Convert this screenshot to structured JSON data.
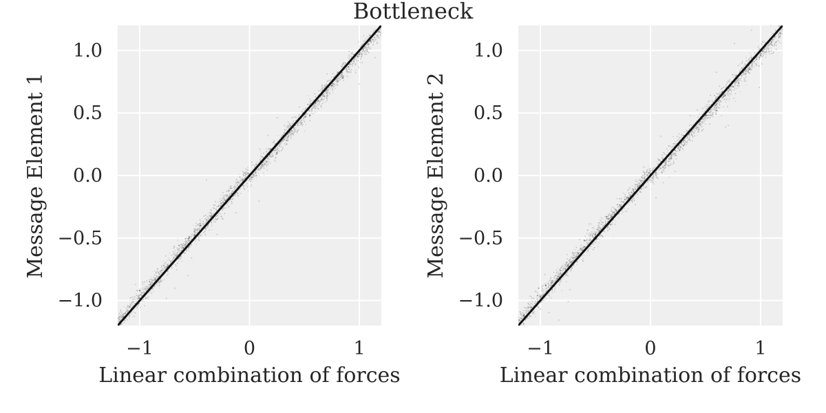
{
  "figure": {
    "suptitle": "Bottleneck"
  },
  "chart_data": [
    {
      "type": "scatter",
      "title": "",
      "xlabel": "Linear combination of forces",
      "ylabel": "Message Element 1",
      "xlim": [
        -1.2,
        1.2
      ],
      "ylim": [
        -1.2,
        1.2
      ],
      "xticks": [
        -1,
        0,
        1
      ],
      "xtick_labels": [
        "−1",
        "0",
        "1"
      ],
      "yticks": [
        -1.0,
        -0.5,
        0.0,
        0.5,
        1.0
      ],
      "ytick_labels": [
        "−1.0",
        "−0.5",
        "0.0",
        "0.5",
        "1.0"
      ],
      "grid": true,
      "style": "seaborn darkgrid, gray background",
      "series": [
        {
          "kind": "points",
          "color": "#555555",
          "relation": "y ≈ x with small scatter, denser near the line",
          "x": [
            -1.15,
            -1.0,
            -0.9,
            -0.75,
            -0.6,
            -0.5,
            -0.35,
            -0.2,
            -0.1,
            0.0,
            0.1,
            0.2,
            0.35,
            0.5,
            0.6,
            0.75,
            0.9,
            1.0,
            1.1,
            -1.0,
            -0.55,
            0.25,
            0.85,
            -0.45,
            0.55
          ],
          "y": [
            -1.13,
            -0.98,
            -0.87,
            -0.73,
            -0.58,
            -0.48,
            -0.33,
            -0.19,
            -0.09,
            0.01,
            0.11,
            0.21,
            0.34,
            0.49,
            0.58,
            0.72,
            0.87,
            0.97,
            1.08,
            -0.92,
            -0.5,
            0.18,
            0.78,
            -0.4,
            0.48
          ]
        },
        {
          "kind": "line",
          "color": "#111111",
          "x": [
            -1.2,
            1.2
          ],
          "y": [
            -1.2,
            1.2
          ]
        }
      ]
    },
    {
      "type": "scatter",
      "title": "",
      "xlabel": "Linear combination of forces",
      "ylabel": "Message Element 2",
      "xlim": [
        -1.2,
        1.2
      ],
      "ylim": [
        -1.2,
        1.2
      ],
      "xticks": [
        -1,
        0,
        1
      ],
      "xtick_labels": [
        "−1",
        "0",
        "1"
      ],
      "yticks": [
        -1.0,
        -0.5,
        0.0,
        0.5,
        1.0
      ],
      "ytick_labels": [
        "−1.0",
        "−0.5",
        "0.0",
        "0.5",
        "1.0"
      ],
      "grid": true,
      "style": "seaborn darkgrid, gray background",
      "series": [
        {
          "kind": "points",
          "color": "#555555",
          "relation": "y ≈ x with small scatter, denser near the line",
          "x": [
            -1.15,
            -1.0,
            -0.9,
            -0.75,
            -0.6,
            -0.5,
            -0.35,
            -0.2,
            -0.1,
            0.0,
            0.1,
            0.2,
            0.35,
            0.5,
            0.6,
            0.75,
            0.9,
            1.0,
            1.1,
            -0.95,
            -0.6,
            0.3,
            0.8,
            -0.4,
            0.6
          ],
          "y": [
            -1.12,
            -0.97,
            -0.86,
            -0.72,
            -0.57,
            -0.47,
            -0.33,
            -0.18,
            -0.08,
            0.01,
            0.11,
            0.2,
            0.33,
            0.48,
            0.57,
            0.71,
            0.85,
            0.96,
            1.07,
            -0.88,
            -0.52,
            0.24,
            0.74,
            -0.33,
            0.52
          ]
        },
        {
          "kind": "line",
          "color": "#111111",
          "x": [
            -1.2,
            1.2
          ],
          "y": [
            -1.2,
            1.2
          ]
        }
      ]
    }
  ]
}
